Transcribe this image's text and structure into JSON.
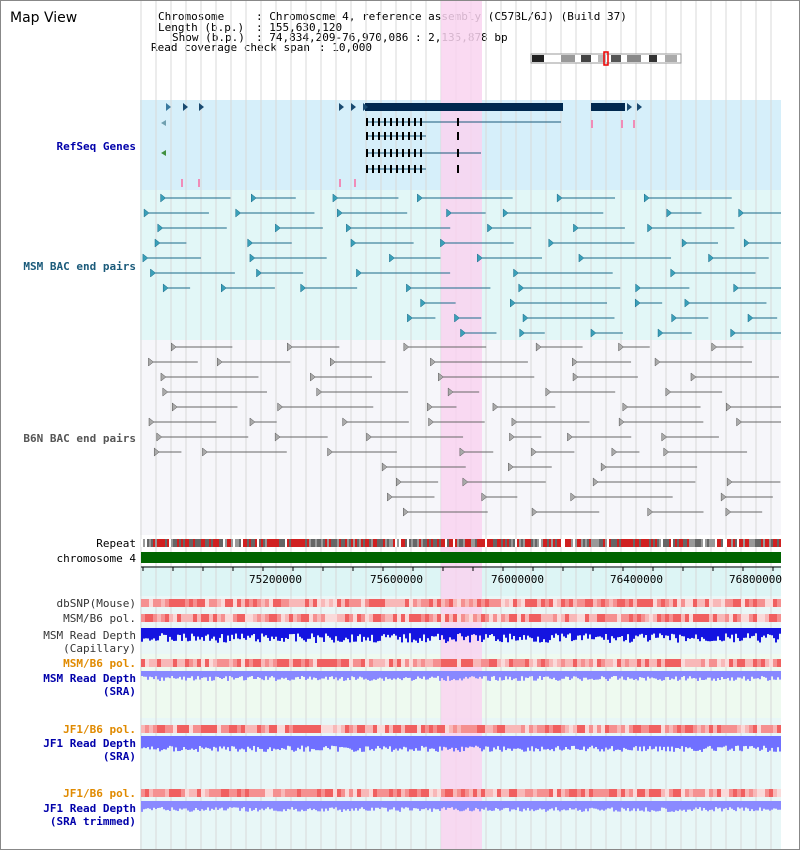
{
  "view_title": "Map View",
  "header": {
    "chromosome_key": "Chromosome",
    "chromosome_val": ": Chromosome 4, reference assembly (C57BL/6J) (Build 37)",
    "length_key": "Length (b.p.)",
    "length_val": ": 155,630,120",
    "show_key": "Show (b.p.)",
    "show_val": ": 74,834,209-76,970,086 : 2,135,878 bp",
    "coverage_key": "Read coverage check span",
    "coverage_val": ": 10,000"
  },
  "tracks": {
    "refseq": "RefSeq Genes",
    "msm_bac": "MSM BAC end pairs",
    "b6n_bac": "B6N BAC end pairs",
    "repeat": "Repeat",
    "chromosome": "chromosome 4",
    "dbsnp": "dbSNP(Mouse)",
    "msm_b6_pol_1": "MSM/B6 pol.",
    "msm_depth_cap_1": "MSM Read Depth",
    "msm_depth_cap_2": "(Capillary)",
    "msm_b6_pol_2": "MSM/B6 pol.",
    "msm_depth_sra_1": "MSM Read Depth",
    "msm_depth_sra_2": "(SRA)",
    "jf1_pol_1": "JF1/B6 pol.",
    "jf1_depth_sra_1": "JF1 Read Depth",
    "jf1_depth_sra_2": "(SRA)",
    "jf1_pol_2": "JF1/B6 pol.",
    "jf1_depth_trim_1": "JF1 Read Depth",
    "jf1_depth_trim_2": "(SRA trimmed)"
  },
  "axis": {
    "ticks": [
      "75200000",
      "75600000",
      "76000000",
      "76400000",
      "76800000"
    ]
  },
  "colors": {
    "highlight": "#f9d4f0",
    "refseq_bg": "#d6effa",
    "msm_bg": "#e2f7f7",
    "gene_dark": "#00284f",
    "chrom_green": "#006400",
    "snp_red": "#ee5050",
    "depth_blue": "#2020e0",
    "depth_light": "#8080ff"
  }
}
